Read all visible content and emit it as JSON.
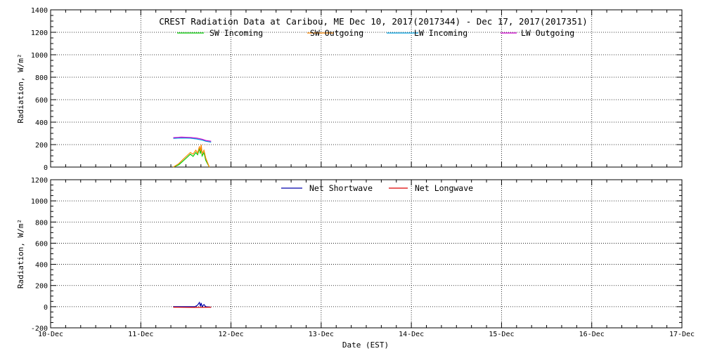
{
  "chart_data": {
    "title": "CREST Radiation Data at Caribou, ME   Dec 10, 2017(2017344) - Dec 17, 2017(2017351)",
    "xlabel": "Date (EST)",
    "x_ticks": [
      "10-Dec",
      "11-Dec",
      "12-Dec",
      "13-Dec",
      "14-Dec",
      "15-Dec",
      "16-Dec",
      "17-Dec"
    ],
    "x_unit": "days since 10-Dec 00:00 EST",
    "xlim": [
      0,
      7
    ],
    "panels": [
      {
        "type": "line",
        "ylabel": "Radiation, W/m^2",
        "ylim": [
          0,
          1400
        ],
        "yticks": [
          0,
          200,
          400,
          600,
          800,
          1000,
          1200,
          1400
        ],
        "grid": true,
        "legend_placement": "top-center",
        "series": [
          {
            "name": "SW Incoming",
            "color": "#00cc00",
            "points": [
              [
                1.36,
                0
              ],
              [
                1.42,
                20
              ],
              [
                1.47,
                55
              ],
              [
                1.51,
                85
              ],
              [
                1.55,
                115
              ],
              [
                1.58,
                95
              ],
              [
                1.61,
                130
              ],
              [
                1.63,
                110
              ],
              [
                1.65,
                165
              ],
              [
                1.66,
                120
              ],
              [
                1.67,
                175
              ],
              [
                1.68,
                100
              ],
              [
                1.7,
                130
              ],
              [
                1.72,
                60
              ],
              [
                1.74,
                30
              ],
              [
                1.76,
                0
              ]
            ]
          },
          {
            "name": "SW Outgoing",
            "color": "#ff8800",
            "points": [
              [
                1.36,
                0
              ],
              [
                1.42,
                30
              ],
              [
                1.47,
                70
              ],
              [
                1.51,
                100
              ],
              [
                1.55,
                130
              ],
              [
                1.58,
                115
              ],
              [
                1.61,
                150
              ],
              [
                1.63,
                125
              ],
              [
                1.65,
                185
              ],
              [
                1.66,
                140
              ],
              [
                1.67,
                200
              ],
              [
                1.68,
                120
              ],
              [
                1.7,
                150
              ],
              [
                1.72,
                80
              ],
              [
                1.74,
                40
              ],
              [
                1.76,
                0
              ]
            ]
          },
          {
            "name": "LW Incoming",
            "color": "#00a0e0",
            "points": [
              [
                1.36,
                255
              ],
              [
                1.45,
                258
              ],
              [
                1.55,
                257
              ],
              [
                1.62,
                250
              ],
              [
                1.68,
                240
              ],
              [
                1.72,
                230
              ],
              [
                1.78,
                222
              ]
            ]
          },
          {
            "name": "LW Outgoing",
            "color": "#cc00cc",
            "points": [
              [
                1.36,
                262
              ],
              [
                1.45,
                266
              ],
              [
                1.55,
                264
              ],
              [
                1.62,
                258
              ],
              [
                1.68,
                248
              ],
              [
                1.72,
                237
              ],
              [
                1.78,
                230
              ]
            ]
          }
        ]
      },
      {
        "type": "line",
        "ylabel": "Radiation, W/m^2",
        "ylim": [
          -200,
          1200
        ],
        "yticks": [
          -200,
          0,
          200,
          400,
          600,
          800,
          1000,
          1200
        ],
        "grid": true,
        "legend_placement": "top-center",
        "series": [
          {
            "name": "Net Shortwave",
            "color": "#0000aa",
            "points": [
              [
                1.36,
                0
              ],
              [
                1.6,
                0
              ],
              [
                1.63,
                15
              ],
              [
                1.65,
                40
              ],
              [
                1.66,
                5
              ],
              [
                1.67,
                35
              ],
              [
                1.68,
                0
              ],
              [
                1.7,
                20
              ],
              [
                1.72,
                0
              ],
              [
                1.78,
                -5
              ]
            ]
          },
          {
            "name": "Net Longwave",
            "color": "#dd0000",
            "points": [
              [
                1.36,
                -5
              ],
              [
                1.5,
                -6
              ],
              [
                1.6,
                -7
              ],
              [
                1.7,
                -6
              ],
              [
                1.78,
                -5
              ]
            ]
          }
        ]
      }
    ]
  }
}
